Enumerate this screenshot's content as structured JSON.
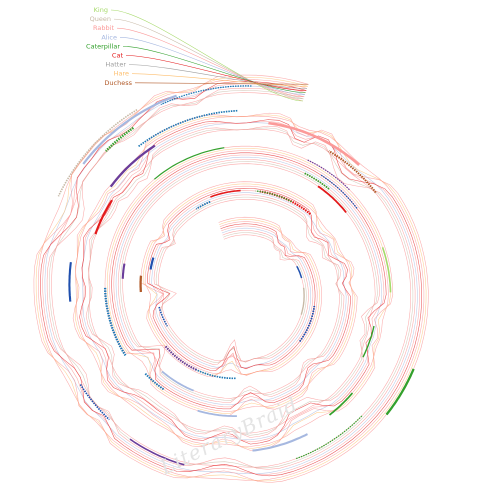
{
  "diagram": {
    "watermark": "LiteraryBraid",
    "characters": [
      {
        "name": "King",
        "color": "#a6d96a"
      },
      {
        "name": "Queen",
        "color": "#c7b9a6"
      },
      {
        "name": "Rabbit",
        "color": "#fb9a99"
      },
      {
        "name": "Alice",
        "color": "#a6b8e0"
      },
      {
        "name": "Caterpillar",
        "color": "#33a02c"
      },
      {
        "name": "Cat",
        "color": "#e31a1c"
      },
      {
        "name": "Hatter",
        "color": "#9e9e9e"
      },
      {
        "name": "Hare",
        "color": "#fdbf6f"
      },
      {
        "name": "Duchess",
        "color": "#b15928"
      }
    ],
    "spiral_strand_color": "#fa8e8e",
    "highlight_colors": [
      "#1f4fae",
      "#6a3d9a",
      "#33a02c",
      "#1f78b4"
    ]
  }
}
